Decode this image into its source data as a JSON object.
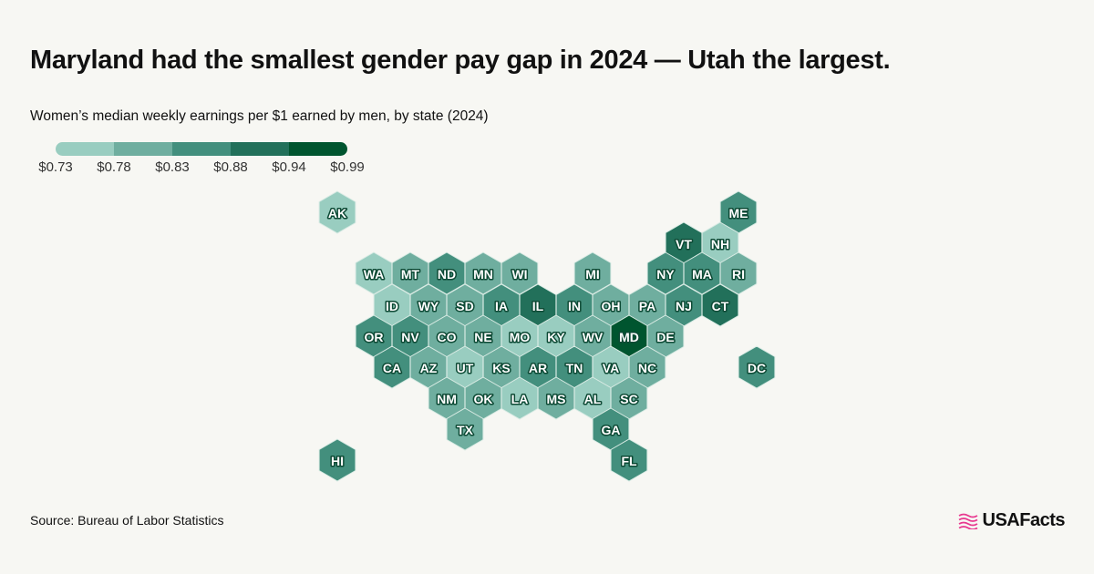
{
  "title": "Maryland had the smallest gender pay gap in 2024 — Utah the largest.",
  "subtitle": "Women’s median weekly earnings per $1 earned by men, by state (2024)",
  "legend": {
    "breaks": [
      "$0.73",
      "$0.78",
      "$0.83",
      "$0.88",
      "$0.94",
      "$0.99"
    ],
    "colors": [
      "#99cdc0",
      "#6fae9f",
      "#438f7d",
      "#22705a",
      "#00552f"
    ]
  },
  "map": {
    "type": "hex tile map",
    "value_note": "bin index 1-5 corresponds to legend color classes",
    "states": [
      {
        "abbr": "AK",
        "bin": 1
      },
      {
        "abbr": "ME",
        "bin": 3
      },
      {
        "abbr": "VT",
        "bin": 4
      },
      {
        "abbr": "NH",
        "bin": 1
      },
      {
        "abbr": "WA",
        "bin": 1
      },
      {
        "abbr": "MT",
        "bin": 2
      },
      {
        "abbr": "ND",
        "bin": 3
      },
      {
        "abbr": "MN",
        "bin": 2
      },
      {
        "abbr": "WI",
        "bin": 2
      },
      {
        "abbr": "MI",
        "bin": 2
      },
      {
        "abbr": "NY",
        "bin": 3
      },
      {
        "abbr": "MA",
        "bin": 3
      },
      {
        "abbr": "RI",
        "bin": 2
      },
      {
        "abbr": "ID",
        "bin": 1
      },
      {
        "abbr": "WY",
        "bin": 2
      },
      {
        "abbr": "SD",
        "bin": 2
      },
      {
        "abbr": "IA",
        "bin": 3
      },
      {
        "abbr": "IL",
        "bin": 4
      },
      {
        "abbr": "IN",
        "bin": 3
      },
      {
        "abbr": "OH",
        "bin": 2
      },
      {
        "abbr": "PA",
        "bin": 2
      },
      {
        "abbr": "NJ",
        "bin": 3
      },
      {
        "abbr": "CT",
        "bin": 4
      },
      {
        "abbr": "OR",
        "bin": 3
      },
      {
        "abbr": "NV",
        "bin": 3
      },
      {
        "abbr": "CO",
        "bin": 2
      },
      {
        "abbr": "NE",
        "bin": 2
      },
      {
        "abbr": "MO",
        "bin": 1
      },
      {
        "abbr": "KY",
        "bin": 1
      },
      {
        "abbr": "WV",
        "bin": 2
      },
      {
        "abbr": "MD",
        "bin": 5
      },
      {
        "abbr": "DE",
        "bin": 2
      },
      {
        "abbr": "CA",
        "bin": 3
      },
      {
        "abbr": "AZ",
        "bin": 2
      },
      {
        "abbr": "UT",
        "bin": 1
      },
      {
        "abbr": "KS",
        "bin": 2
      },
      {
        "abbr": "AR",
        "bin": 3
      },
      {
        "abbr": "TN",
        "bin": 3
      },
      {
        "abbr": "VA",
        "bin": 1
      },
      {
        "abbr": "NC",
        "bin": 2
      },
      {
        "abbr": "DC",
        "bin": 3
      },
      {
        "abbr": "NM",
        "bin": 2
      },
      {
        "abbr": "OK",
        "bin": 2
      },
      {
        "abbr": "LA",
        "bin": 1
      },
      {
        "abbr": "MS",
        "bin": 2
      },
      {
        "abbr": "AL",
        "bin": 1
      },
      {
        "abbr": "SC",
        "bin": 2
      },
      {
        "abbr": "TX",
        "bin": 2
      },
      {
        "abbr": "GA",
        "bin": 3
      },
      {
        "abbr": "HI",
        "bin": 3
      },
      {
        "abbr": "FL",
        "bin": 3
      }
    ]
  },
  "source": "Source: Bureau of Labor Statistics",
  "logo": {
    "text": "USAFacts",
    "color": "#e8388f"
  }
}
